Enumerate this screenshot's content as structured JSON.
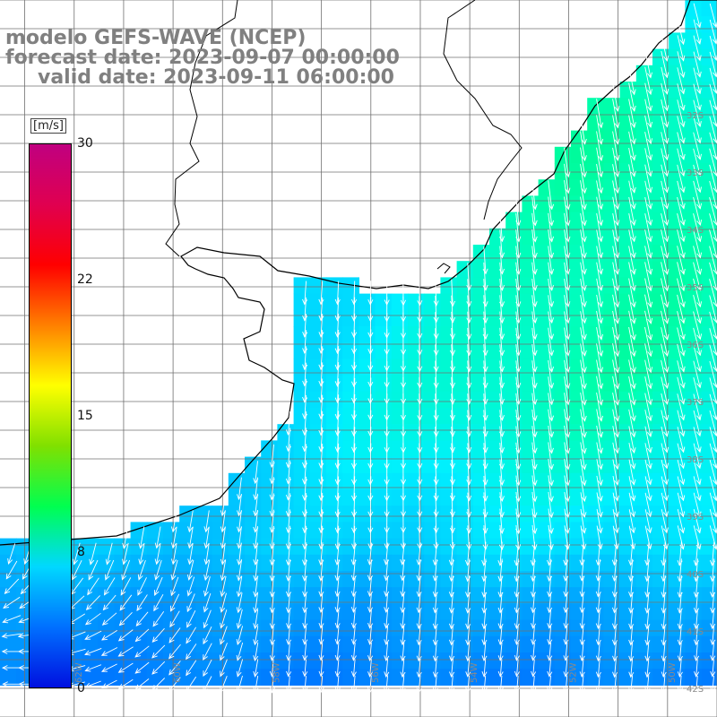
{
  "title": {
    "model": "modelo GEFS-WAVE (NCEP)",
    "forecast_date": "forecast date: 2023-09-07 00:00:00",
    "valid_date": "valid date: 2023-09-11 06:00:00"
  },
  "colorbar": {
    "unit": "[m/s]",
    "min": 0,
    "max": 30,
    "ticks": [
      "30",
      "22",
      "15",
      "8",
      "0"
    ],
    "tick_values": [
      30,
      22,
      15,
      8,
      0
    ],
    "colors": [
      "#0010e0",
      "#0070ff",
      "#00d8ff",
      "#00ff50",
      "#80e000",
      "#ffff00",
      "#ff8000",
      "#ff0000",
      "#e00050",
      "#c00080"
    ]
  },
  "map": {
    "variable": "wind speed and direction",
    "lat_range": [
      -42.5,
      -30.0
    ],
    "lon_range": [
      -63.5,
      -49.0
    ],
    "grid_spacing_lat": 0.5,
    "grid_spacing_lon": 1.0,
    "meridian_labels": [
      "62W",
      "60W",
      "58W",
      "56W",
      "54W",
      "52W",
      "50W"
    ],
    "parallel_labels": [
      "32S",
      "33S",
      "34S",
      "35S",
      "36S",
      "37S",
      "38S",
      "39S",
      "40S",
      "41S",
      "42S"
    ]
  }
}
